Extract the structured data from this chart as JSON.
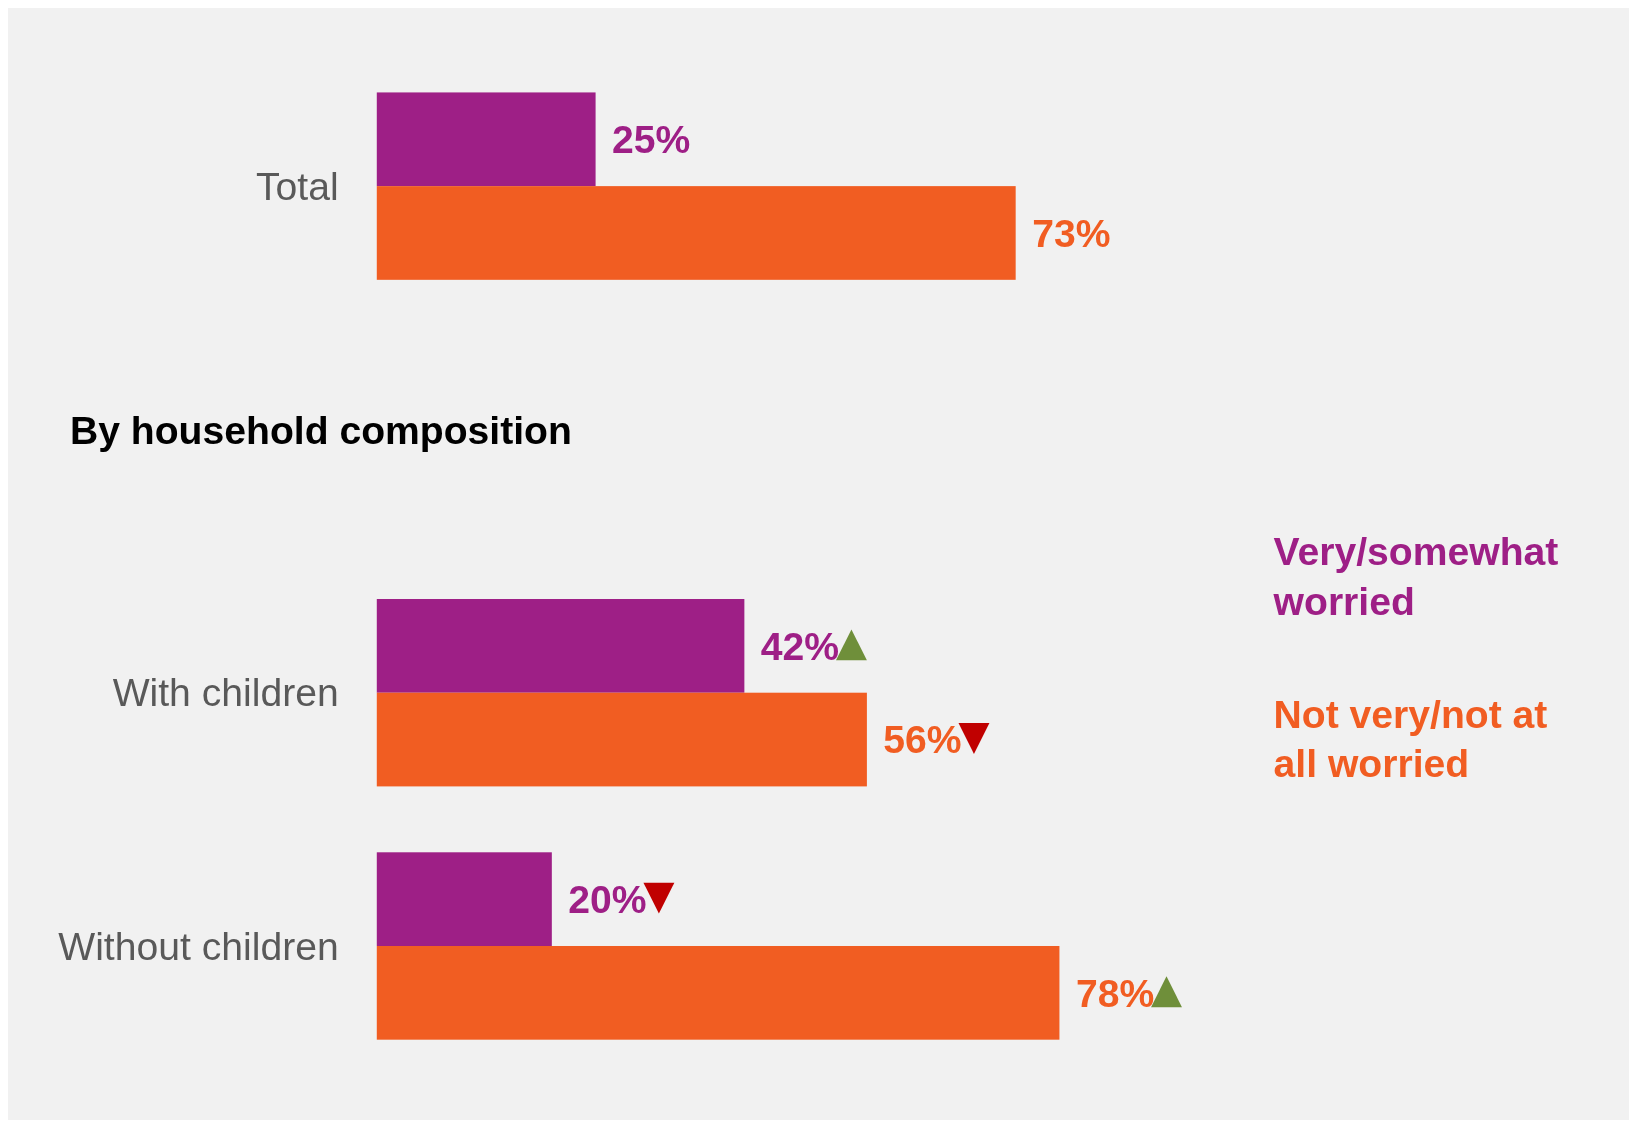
{
  "chart_data": {
    "type": "bar",
    "orientation": "horizontal",
    "categories": [
      "Total",
      "With children",
      "Without children"
    ],
    "series": [
      {
        "name": "Very/somewhat worried",
        "color": "#9e1f86",
        "values": [
          25,
          42,
          20
        ],
        "value_labels": [
          "25%",
          "42%",
          "20%"
        ]
      },
      {
        "name": "Not very/not at all worried",
        "color": "#f15d22",
        "values": [
          73,
          56,
          78
        ],
        "value_labels": [
          "73%",
          "56%",
          "78%"
        ]
      }
    ],
    "tick_labels": "y",
    "legend": "right",
    "annotations": [
      "By household composition"
    ]
  }
}
